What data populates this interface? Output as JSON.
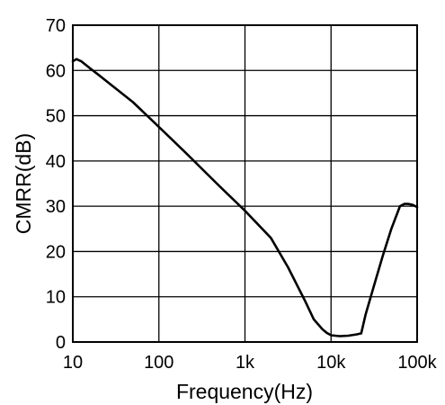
{
  "chart_data": {
    "type": "line",
    "title": "",
    "xlabel": "Frequency(Hz)",
    "ylabel": "CMRR(dB)",
    "x_scale": "log",
    "xlim": [
      10,
      100000
    ],
    "ylim": [
      0,
      70
    ],
    "grid": true,
    "x_ticks": [
      {
        "value": 10,
        "label": "10"
      },
      {
        "value": 100,
        "label": "100"
      },
      {
        "value": 1000,
        "label": "1k"
      },
      {
        "value": 10000,
        "label": "10k"
      },
      {
        "value": 100000,
        "label": "100k"
      }
    ],
    "y_ticks": [
      0,
      10,
      20,
      30,
      40,
      50,
      60,
      70
    ],
    "series": [
      {
        "x": [
          10,
          11,
          12.6,
          15.8,
          20,
          31.6,
          50,
          100,
          200,
          501,
          1000,
          2000,
          3162,
          5012,
          6310,
          7943,
          8913,
          10000,
          12589,
          15849,
          19953,
          22387,
          25119,
          31623,
          39811,
          50119,
          63096,
          70795,
          79433,
          89125,
          100000
        ],
        "y": [
          62.0,
          62.5,
          62.0,
          60.5,
          59.0,
          56.0,
          53.0,
          47.5,
          42.0,
          34.5,
          29.0,
          23.0,
          16.5,
          9.0,
          5.0,
          2.8,
          2.0,
          1.5,
          1.3,
          1.4,
          1.7,
          1.9,
          6.0,
          12.5,
          19.0,
          25.0,
          30.0,
          30.5,
          30.5,
          30.3,
          29.8
        ]
      }
    ],
    "colors": {
      "line": "#000000",
      "grid": "#000000",
      "background": "#ffffff"
    }
  }
}
